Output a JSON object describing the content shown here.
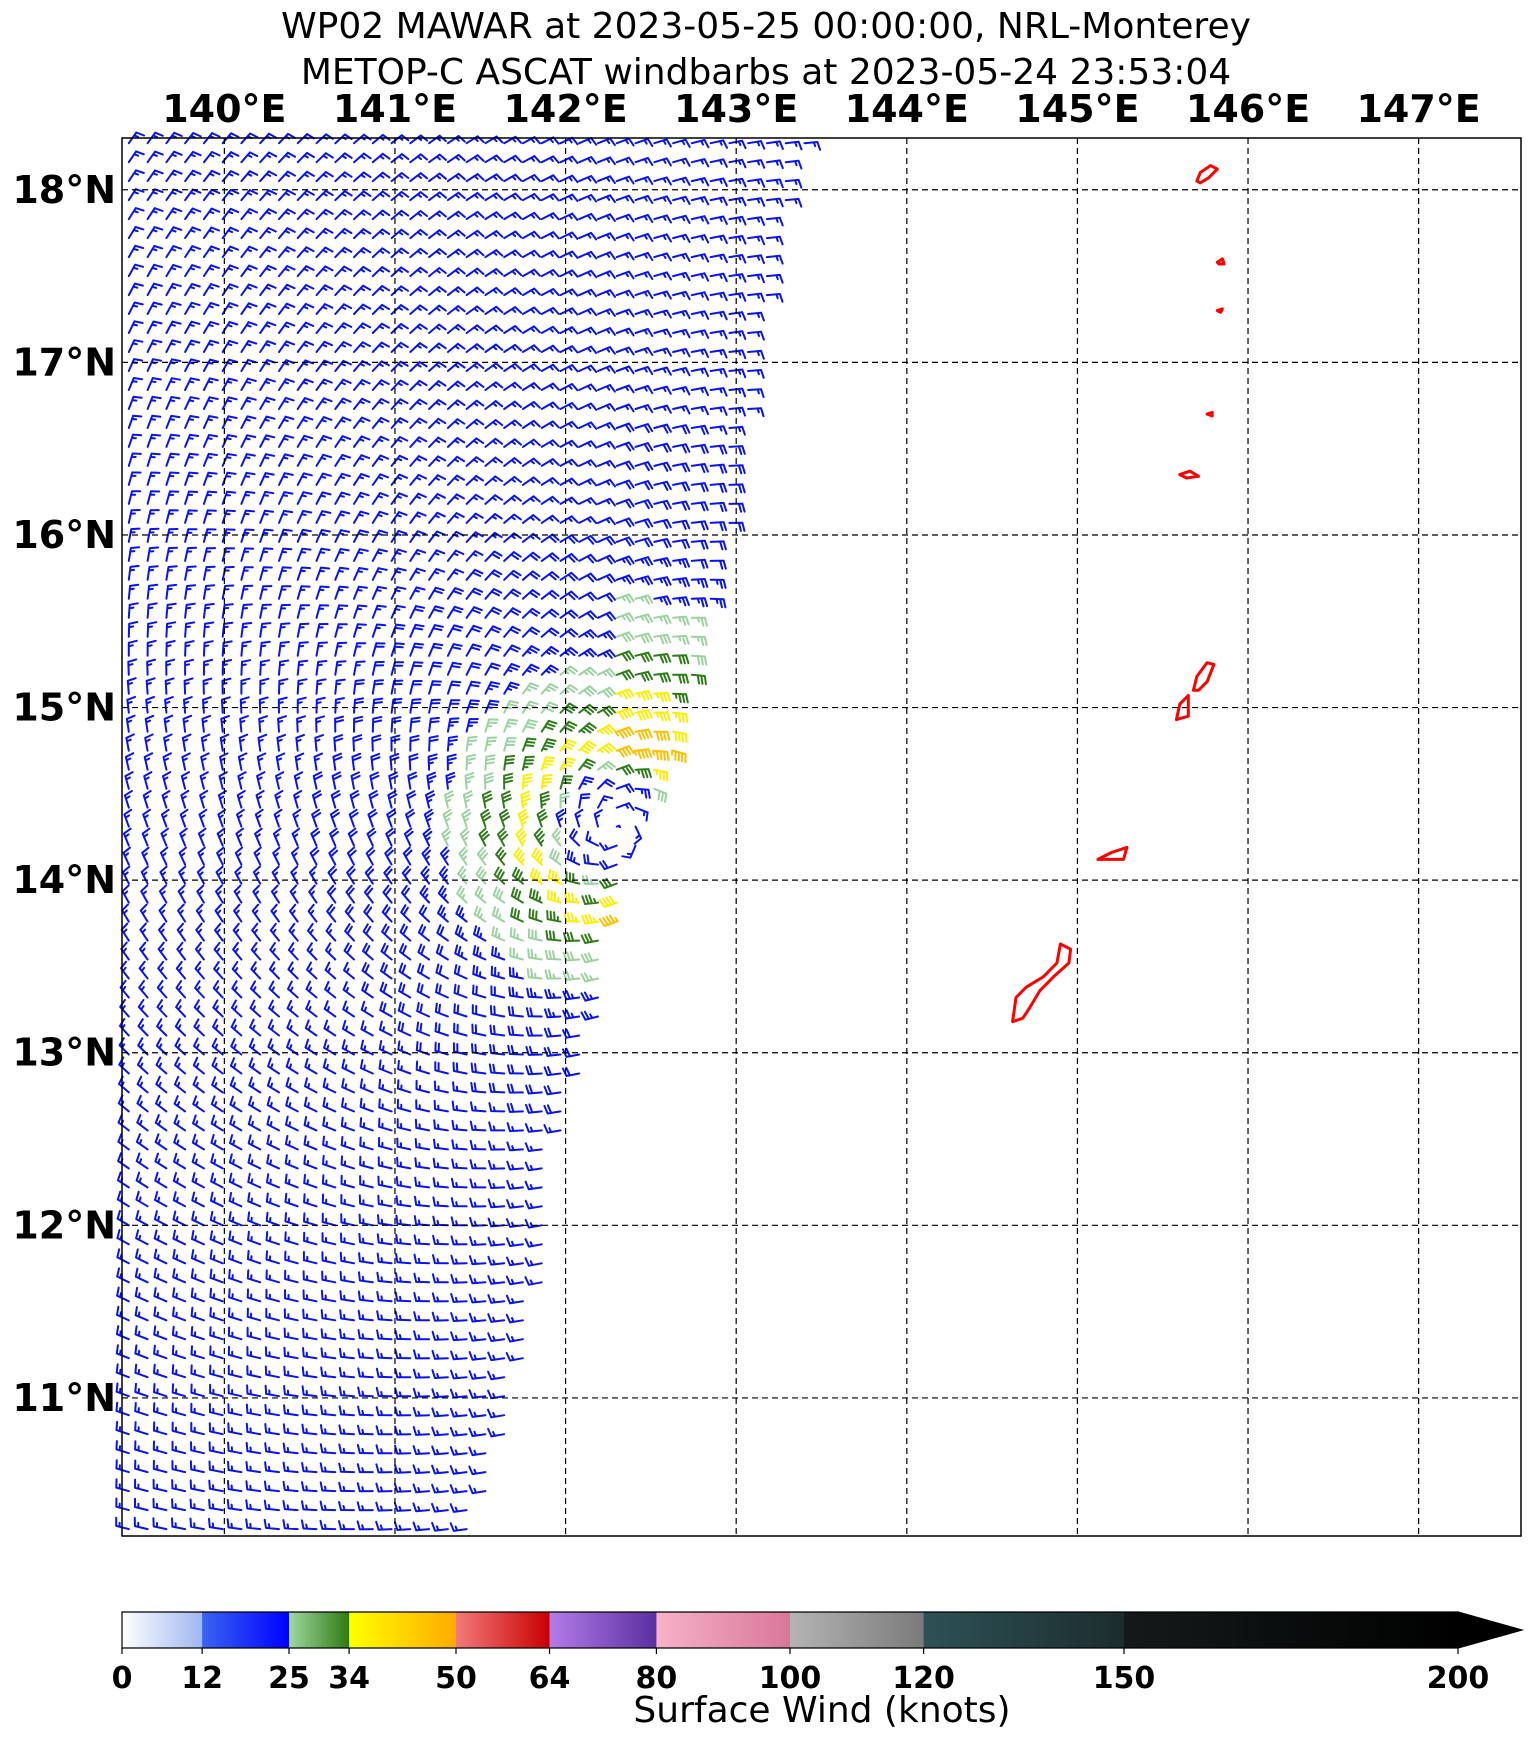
{
  "title_line1": "WP02 MAWAR at 2023-05-25 00:00:00, NRL-Monterey",
  "title_line2": "METOP-C ASCAT windbarbs at 2023-05-24 23:53:04",
  "chart_data": {
    "type": "windbarb-map",
    "lon_range": [
      139.4,
      147.6
    ],
    "lat_range": [
      10.2,
      18.3
    ],
    "lon_ticks": [
      {
        "value": 140,
        "label": "140°E"
      },
      {
        "value": 141,
        "label": "141°E"
      },
      {
        "value": 142,
        "label": "142°E"
      },
      {
        "value": 143,
        "label": "143°E"
      },
      {
        "value": 144,
        "label": "144°E"
      },
      {
        "value": 145,
        "label": "145°E"
      },
      {
        "value": 146,
        "label": "146°E"
      },
      {
        "value": 147,
        "label": "147°E"
      }
    ],
    "lat_ticks": [
      {
        "value": 18,
        "label": "18°N"
      },
      {
        "value": 17,
        "label": "17°N"
      },
      {
        "value": 16,
        "label": "16°N"
      },
      {
        "value": 15,
        "label": "15°N"
      },
      {
        "value": 14,
        "label": "14°N"
      },
      {
        "value": 13,
        "label": "13°N"
      },
      {
        "value": 12,
        "label": "12°N"
      },
      {
        "value": 11,
        "label": "11°N"
      }
    ],
    "grid": "dashed",
    "storm_center": {
      "lon": 142.3,
      "lat": 14.3
    },
    "swath_east_edge": [
      [
        10.2,
        141.5
      ],
      [
        11.0,
        141.75
      ],
      [
        12.0,
        142.0
      ],
      [
        12.5,
        142.0
      ],
      [
        13.0,
        142.2
      ],
      [
        14.0,
        142.4
      ],
      [
        15.0,
        142.75
      ],
      [
        16.0,
        143.0
      ],
      [
        17.0,
        143.15
      ],
      [
        18.0,
        143.35
      ],
      [
        18.3,
        143.45
      ]
    ],
    "coastline_color": "#ff0000",
    "islands": [
      {
        "name": "Guam",
        "pts": [
          [
            144.62,
            13.18
          ],
          [
            144.64,
            13.32
          ],
          [
            144.7,
            13.38
          ],
          [
            144.8,
            13.44
          ],
          [
            144.88,
            13.52
          ],
          [
            144.9,
            13.63
          ],
          [
            144.96,
            13.6
          ],
          [
            144.95,
            13.52
          ],
          [
            144.86,
            13.44
          ],
          [
            144.78,
            13.36
          ],
          [
            144.72,
            13.26
          ],
          [
            144.68,
            13.2
          ]
        ]
      },
      {
        "name": "Rota",
        "pts": [
          [
            145.12,
            14.12
          ],
          [
            145.2,
            14.16
          ],
          [
            145.29,
            14.19
          ],
          [
            145.27,
            14.12
          ],
          [
            145.18,
            14.12
          ]
        ]
      },
      {
        "name": "Tinian",
        "pts": [
          [
            145.58,
            14.93
          ],
          [
            145.6,
            15.02
          ],
          [
            145.65,
            15.07
          ],
          [
            145.65,
            14.95
          ]
        ]
      },
      {
        "name": "Saipan",
        "pts": [
          [
            145.68,
            15.1
          ],
          [
            145.7,
            15.18
          ],
          [
            145.76,
            15.26
          ],
          [
            145.8,
            15.25
          ],
          [
            145.76,
            15.15
          ],
          [
            145.71,
            15.1
          ]
        ]
      },
      {
        "name": "Anatahan",
        "pts": [
          [
            145.6,
            16.35
          ],
          [
            145.66,
            16.37
          ],
          [
            145.71,
            16.34
          ],
          [
            145.64,
            16.33
          ]
        ]
      },
      {
        "name": "Sarigan",
        "pts": [
          [
            145.76,
            16.7
          ],
          [
            145.79,
            16.71
          ],
          [
            145.79,
            16.69
          ]
        ]
      },
      {
        "name": "Guguan",
        "pts": [
          [
            145.82,
            17.3
          ],
          [
            145.85,
            17.31
          ],
          [
            145.84,
            17.29
          ]
        ]
      },
      {
        "name": "Alamagan",
        "pts": [
          [
            145.82,
            17.58
          ],
          [
            145.85,
            17.6
          ],
          [
            145.86,
            17.57
          ],
          [
            145.83,
            17.57
          ]
        ]
      },
      {
        "name": "Pagan",
        "pts": [
          [
            145.7,
            18.05
          ],
          [
            145.72,
            18.1
          ],
          [
            145.78,
            18.14
          ],
          [
            145.82,
            18.12
          ],
          [
            145.77,
            18.07
          ],
          [
            145.72,
            18.04
          ]
        ]
      }
    ],
    "colorbar": {
      "label": "Surface Wind (knots)",
      "extend": "max",
      "tick_labels": [
        "0",
        "12",
        "25",
        "34",
        "50",
        "64",
        "80",
        "100",
        "120",
        "150",
        "200"
      ],
      "tick_values": [
        0,
        12,
        25,
        34,
        50,
        64,
        80,
        100,
        120,
        150,
        200
      ],
      "segments": [
        {
          "from": 0,
          "to": 12,
          "c0": "#ffffff",
          "c1": "#9fb6ef"
        },
        {
          "from": 12,
          "to": 25,
          "c0": "#3a64f0",
          "c1": "#0000ff"
        },
        {
          "from": 25,
          "to": 34,
          "c0": "#9ed8a3",
          "c1": "#2e7a0f"
        },
        {
          "from": 34,
          "to": 50,
          "c0": "#ffff00",
          "c1": "#ffaa00"
        },
        {
          "from": 50,
          "to": 64,
          "c0": "#f27a7a",
          "c1": "#c80000"
        },
        {
          "from": 64,
          "to": 80,
          "c0": "#b37ce8",
          "c1": "#5a2fa0"
        },
        {
          "from": 80,
          "to": 100,
          "c0": "#f7b2c8",
          "c1": "#d9769a"
        },
        {
          "from": 100,
          "to": 120,
          "c0": "#b4b4b4",
          "c1": "#7a7a7a"
        },
        {
          "from": 120,
          "to": 150,
          "c0": "#2d5256",
          "c1": "#1c2c2e"
        },
        {
          "from": 150,
          "to": 200,
          "c0": "#141a1a",
          "c1": "#000000"
        }
      ]
    }
  }
}
